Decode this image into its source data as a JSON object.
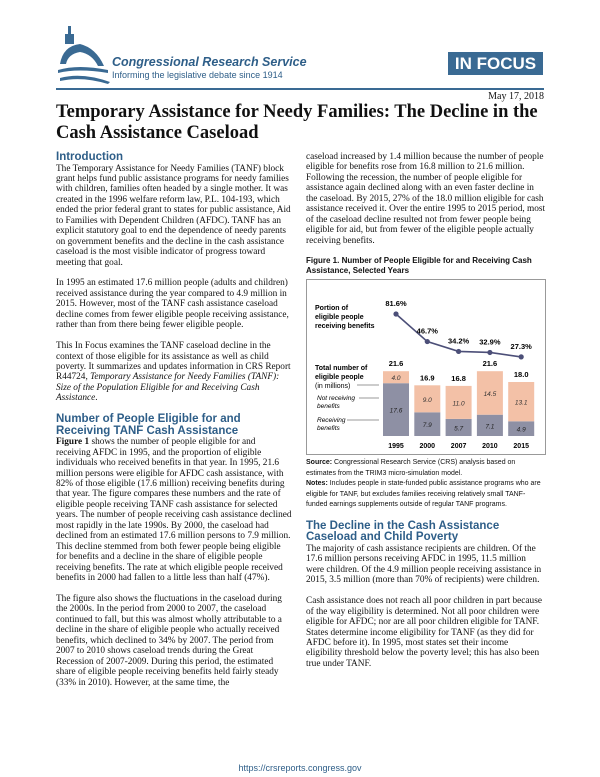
{
  "header": {
    "org": "Congressional Research Service",
    "tagline": "Informing the legislative debate since 1914",
    "badge": "IN FOCUS",
    "date": "May 17, 2018"
  },
  "title": "Temporary Assistance for Needy Families: The Decline in the Cash Assistance Caseload",
  "sections": {
    "intro_heading": "Introduction",
    "intro_p1": "The Temporary Assistance for Needy Families (TANF) block grant helps fund public assistance programs for needy families with children, families often headed by a single mother. It was created in the 1996 welfare reform law, P.L. 104-193, which ended the prior federal grant to states for public assistance, Aid to Families with Dependent Children (AFDC). TANF has an explicit statutory goal to end the dependence of needy parents on government benefits and the decline in the cash assistance caseload is the most visible indicator of progress toward meeting that goal.",
    "intro_p2": "In 1995 an estimated 17.6 million people (adults and children) received assistance during the year compared to 4.9 million in 2015. However, most of the TANF cash assistance caseload decline comes from fewer eligible people receiving assistance, rather than from there being fewer eligible people.",
    "intro_p3a": "This In Focus examines the TANF caseload decline in the context of those eligible for its assistance as well as child poverty. It summarizes and updates information in CRS Report R44724, ",
    "intro_p3_italic": "Temporary Assistance for Needy Families (TANF): Size of the Population Eligible for and Receiving Cash Assistance",
    "intro_p3b": ".",
    "eligible_heading": "Number of People Eligible for and Receiving TANF Cash Assistance",
    "eligible_p1_bold": "Figure 1",
    "eligible_p1": " shows the number of people eligible for and receiving AFDC in 1995, and the proportion of eligible individuals who received benefits in that year. In 1995, 21.6 million persons were eligible for AFDC cash assistance, with 82% of those eligible (17.6 million) receiving benefits during that year. The figure compares these numbers and the rate of eligible people receiving TANF cash assistance for selected years. The number of people receiving cash assistance declined most rapidly in the late 1990s. By 2000, the caseload had declined from an estimated 17.6 million persons to 7.9 million. This decline stemmed from both fewer people being eligible for benefits and a decline in the share of eligible people receiving benefits. The rate at which eligible people received benefits in 2000 had fallen to a little less than half (47%).",
    "eligible_p2": "The figure also shows the fluctuations in the caseload during the 2000s. In the period from 2000 to 2007, the caseload continued to fall, but this was almost wholly attributable to a decline in the share of eligible people who actually received benefits, which declined to 34% by 2007. The period from 2007 to 2010 shows caseload trends during the Great Recession of 2007-2009. During this period, the estimated share of eligible people receiving benefits held fairly steady (33% in 2010). However, at the same time, the",
    "right_p1": "caseload increased by 1.4 million because the number of people eligible for benefits rose from 16.8 million to 21.6 million. Following the recession, the number of people eligible for assistance again declined along with an even faster decline in the caseload. By 2015, 27% of the 18.0 million eligible for cash assistance received it. Over the entire 1995 to 2015 period, most of the caseload decline resulted not from fewer people being eligible for aid, but from fewer of the eligible people actually receiving benefits.",
    "figure_caption": "Figure 1. Number of People Eligible for and Receiving Cash Assistance, Selected Years",
    "source_label": "Source:",
    "source_text": " Congressional Research Service (CRS) analysis based on estimates from the TRIM3 micro-simulation model.",
    "notes_label": "Notes:",
    "notes_text": " Includes people in state-funded public assistance programs who are eligible for TANF, but excludes families receiving relatively small TANF-funded earnings supplements outside of regular TANF programs.",
    "decline_heading": "The Decline in the Cash Assistance Caseload and Child Poverty",
    "decline_p1": "The majority of cash assistance recipients are children. Of the 17.6 million persons receiving AFDC in 1995, 11.5 million were children. Of the 4.9 million people receiving assistance in 2015, 3.5 million (more than 70% of recipients) were children.",
    "decline_p2": "Cash assistance does not reach all poor children in part because of the way eligibility is determined. Not all poor children were eligible for AFDC; nor are all poor children eligible for TANF. States determine income eligibility for TANF (as they did for AFDC before it). In 1995, most states set their income eligibility threshold below the poverty level; this has also been true under TANF."
  },
  "chart_data": {
    "type": "bar",
    "title": "Figure 1. Number of People Eligible for and Receiving Cash Assistance, Selected Years",
    "categories": [
      "1995",
      "2000",
      "2007",
      "2010",
      "2015"
    ],
    "series": [
      {
        "name": "Receiving benefits",
        "values": [
          17.6,
          7.9,
          5.7,
          7.1,
          4.9
        ],
        "color": "#8e90a4"
      },
      {
        "name": "Not receiving benefits",
        "values": [
          4.0,
          9.0,
          11.0,
          14.5,
          13.1
        ],
        "color": "#f3c1a7"
      }
    ],
    "totals": [
      21.6,
      16.9,
      16.8,
      21.6,
      18.0
    ],
    "line": {
      "name": "Portion of eligible people receiving benefits",
      "values": [
        81.6,
        46.7,
        34.2,
        32.9,
        27.3
      ],
      "labels": [
        "81.6%",
        "46.7%",
        "34.2%",
        "32.9%",
        "27.3%"
      ],
      "color": "#4c4f78"
    },
    "labels": {
      "line": [
        "Portion of",
        "eligible people",
        "receiving benefits"
      ],
      "total": [
        "Total number of",
        "eligible people"
      ],
      "total_units": "(in millions)",
      "not_receiving": [
        "Not receiving",
        "benefits"
      ],
      "receiving": [
        "Receiving",
        "benefits"
      ]
    }
  },
  "footer": {
    "url": "https://crsreports.congress.gov"
  }
}
